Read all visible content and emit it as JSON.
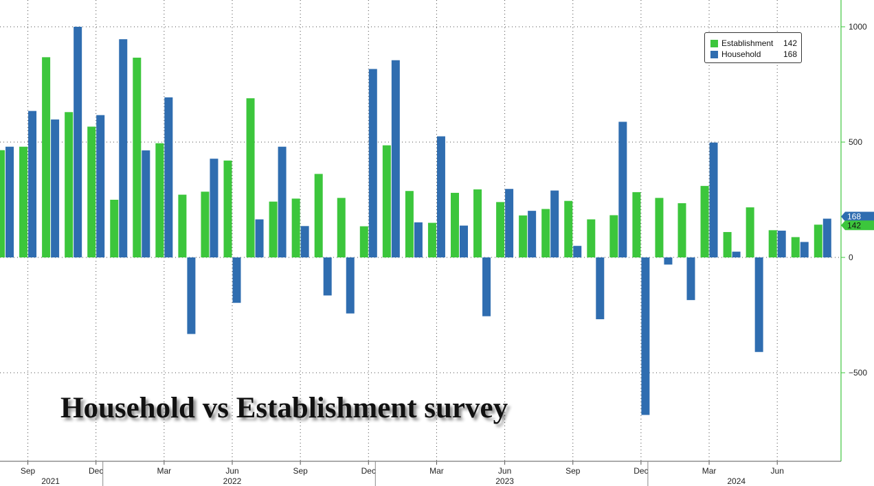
{
  "colors": {
    "establishment": "#3cc63c",
    "household": "#2f6db0",
    "grid": "#444444",
    "axis": "#3cc63c",
    "text": "#222222"
  },
  "chart_data": {
    "type": "bar",
    "title": "Household vs Establishment survey",
    "ylim": [
      -850,
      1100
    ],
    "yticks": [
      1000,
      500,
      0,
      -500
    ],
    "ytick_labels": [
      "1000",
      "500",
      "0",
      "−500"
    ],
    "x_tick_labels": [
      {
        "label": "Sep",
        "index": 1
      },
      {
        "label": "Dec",
        "index": 4
      },
      {
        "label": "Mar",
        "index": 7
      },
      {
        "label": "Jun",
        "index": 10
      },
      {
        "label": "Sep",
        "index": 13
      },
      {
        "label": "Dec",
        "index": 16
      },
      {
        "label": "Mar",
        "index": 19
      },
      {
        "label": "Jun",
        "index": 22
      },
      {
        "label": "Sep",
        "index": 25
      },
      {
        "label": "Dec",
        "index": 28
      },
      {
        "label": "Mar",
        "index": 31
      },
      {
        "label": "Jun",
        "index": 34
      }
    ],
    "year_labels": [
      {
        "label": "2021",
        "index": 2
      },
      {
        "label": "2022",
        "index": 10
      },
      {
        "label": "2023",
        "index": 22
      },
      {
        "label": "2024",
        "index": 32.2
      }
    ],
    "categories": [
      "Aug 2021",
      "Sep 2021",
      "Oct 2021",
      "Nov 2021",
      "Dec 2021",
      "Jan 2022",
      "Feb 2022",
      "Mar 2022",
      "Apr 2022",
      "May 2022",
      "Jun 2022",
      "Jul 2022",
      "Aug 2022",
      "Sep 2022",
      "Oct 2022",
      "Nov 2022",
      "Dec 2022",
      "Jan 2023",
      "Feb 2023",
      "Mar 2023",
      "Apr 2023",
      "May 2023",
      "Jun 2023",
      "Jul 2023",
      "Aug 2023",
      "Sep 2023",
      "Oct 2023",
      "Nov 2023",
      "Dec 2023",
      "Jan 2024",
      "Feb 2024",
      "Mar 2024",
      "Apr 2024",
      "May 2024",
      "Jun 2024",
      "Jul 2024",
      "Aug 2024"
    ],
    "series": [
      {
        "name": "Establishment",
        "values": [
          465,
          480,
          868,
          630,
          567,
          250,
          866,
          495,
          272,
          285,
          420,
          690,
          242,
          255,
          362,
          258,
          135,
          486,
          288,
          150,
          280,
          295,
          240,
          182,
          210,
          245,
          165,
          183,
          283,
          258,
          235,
          310,
          110,
          217,
          118,
          88,
          142
        ]
      },
      {
        "name": "Household",
        "values": [
          480,
          635,
          598,
          1000,
          617,
          946,
          464,
          694,
          -332,
          428,
          -197,
          165,
          480,
          136,
          -165,
          -243,
          817,
          855,
          152,
          525,
          138,
          -255,
          297,
          202,
          290,
          50,
          -268,
          588,
          -683,
          -31,
          -185,
          498,
          25,
          -410,
          116,
          67,
          168
        ]
      }
    ],
    "legend": {
      "position": "top-right",
      "entries": [
        {
          "name": "Establishment",
          "last": "142"
        },
        {
          "name": "Household",
          "last": "168"
        }
      ]
    },
    "last_value_tags": {
      "household": "168",
      "establishment": "142"
    }
  }
}
